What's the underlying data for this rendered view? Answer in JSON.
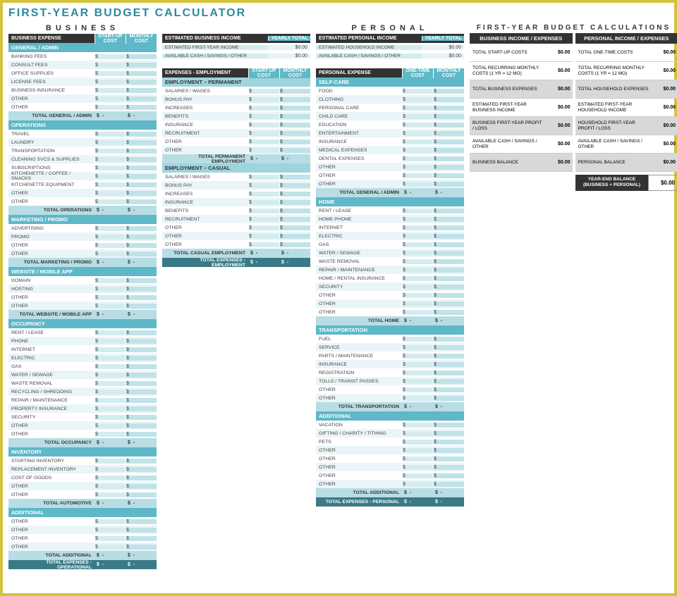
{
  "title": "FIRST-YEAR BUDGET CALCULATOR",
  "sections": {
    "business": "BUSINESS",
    "personal": "PERSONAL",
    "calc": "FIRST-YEAR BUDGET CALCULATIONS"
  },
  "headers": {
    "businessExpense": "BUSINESS EXPENSE",
    "startup": "START-UP COST",
    "monthly": "MONTHLY COST",
    "businessIncome": "ESTIMATED BUSINESS INCOME",
    "yearlyTotal": "YEARLY TOTAL",
    "expensesEmp": "EXPENSES - EMPLOYMENT",
    "personalIncome": "ESTIMATED PERSONAL INCOME",
    "personalExpense": "PERSONAL EXPENSE",
    "oneTime": "ONE-TIME COST",
    "bizIncExp": "BUSINESS INCOME / EXPENSES",
    "persIncExp": "PERSONAL INCOME / EXPENSES"
  },
  "dollar": "$",
  "dash": "-",
  "zero": "$0.00",
  "biz": {
    "generalAdmin": {
      "title": "GENERAL / ADMIN",
      "items": [
        "Banking Fees",
        "Consult Fees",
        "Office Supplies",
        "License Fees",
        "Business Insurance",
        "Other",
        "Other"
      ],
      "total": "TOTAL GENERAL / ADMIN"
    },
    "operations": {
      "title": "OPERATIONS",
      "items": [
        "Travel",
        "Laundry",
        "Transportation",
        "Cleaning Svcs & Supplies",
        "Subscriptions",
        "Kitchenette / Coffee / Snacks",
        "Kitchenette Equipment",
        "Other",
        "Other"
      ],
      "total": "TOTAL OPERATIONS"
    },
    "marketing": {
      "title": "MARKETING / PROMO",
      "items": [
        "Advertising",
        "Promo",
        "Other",
        "Other"
      ],
      "total": "TOTAL MARKETING / PROMO"
    },
    "website": {
      "title": "WEBSITE / MOBILE APP",
      "items": [
        "Domain",
        "Hosting",
        "Other",
        "Other"
      ],
      "total": "TOTAL WEBSITE / MOBILE APP"
    },
    "occupancy": {
      "title": "OCCUPANCY",
      "items": [
        "Rent / Lease",
        "Phone",
        "Internet",
        "Electric",
        "Gas",
        "Water / Sewage",
        "Waste Removal",
        "Recycling / Shredding",
        "Repair / Maintenance",
        "Property Insurance",
        "Security",
        "Other",
        "Other"
      ],
      "total": "TOTAL OCCUPANCY"
    },
    "inventory": {
      "title": "INVENTORY",
      "items": [
        "Starting Inventory",
        "Replacement Inventory",
        "Cost of Goods",
        "Other",
        "Other"
      ],
      "total": "TOTAL AUTOMOTIVE"
    },
    "additional": {
      "title": "ADDITIONAL",
      "items": [
        "Other",
        "Other",
        "Other",
        "Other"
      ],
      "total": "TOTAL ADDITIONAL"
    },
    "grandTotal": "TOTAL EXPENSES - OPERATIONAL"
  },
  "income": {
    "biz": [
      [
        "ESTIMATED FIRST-YEAR INCOME",
        "$0.00"
      ],
      [
        "AVAILABLE CASH / SAVINGS / OTHER",
        "$0.00"
      ]
    ],
    "pers": [
      [
        "ESTIMATED HOUSEHOLD INCOME",
        "$0.00"
      ],
      [
        "AVAILABLE CASH / SAVINGS / OTHER",
        "$0.00"
      ]
    ]
  },
  "emp": {
    "permanent": {
      "title": "EMPLOYMENT – PERMANENT",
      "items": [
        "Salaries / Wages",
        "Bonus Pay",
        "Increases",
        "Benefits",
        "Insurance",
        "Recruitment",
        "Other",
        "Other"
      ],
      "total": "TOTAL PERMANENT EMPLOYMENT"
    },
    "casual": {
      "title": "EMPLOYMENT – CASUAL",
      "items": [
        "Salaries / Wages",
        "Bonus Pay",
        "Increases",
        "Insurance",
        "Benefits",
        "Recruitment",
        "Other",
        "Other",
        "Other"
      ],
      "total": "TOTAL CASUAL EMPLOYMENT"
    },
    "grandTotal": "TOTAL EXPENSES - EMPLOYMENT"
  },
  "pers": {
    "selfcare": {
      "title": "SELF-CARE",
      "items": [
        "Food",
        "Clothing",
        "Personal Care",
        "Child Care",
        "Education",
        "Entertainment",
        "Insurance",
        "Medical Expenses",
        "Dental Expenses",
        "Other",
        "Other",
        "Other"
      ],
      "total": "TOTAL GENERAL / ADMIN"
    },
    "home": {
      "title": "HOME",
      "items": [
        "Rent / Lease",
        "Home Phone",
        "Internet",
        "Electric",
        "Gas",
        "Water / Sewage",
        "Waste Removal",
        "Repair / Maintenance",
        "Home / Rental Insurance",
        "Security",
        "Other",
        "Other",
        "Other"
      ],
      "total": "TOTAL HOME"
    },
    "transport": {
      "title": "TRANSPORTATION",
      "items": [
        "Fuel",
        "Service",
        "Parts / Maintenance",
        "Insurance",
        "Registration",
        "Tolls / Transit Passes",
        "Other",
        "Other"
      ],
      "total": "TOTAL TRANSPORTATION"
    },
    "additional": {
      "title": "ADDITIONAL",
      "items": [
        "Vacation",
        "Gifting / Charity / Tithing",
        "Pets",
        "Other",
        "Other",
        "Other",
        "Other",
        "Other"
      ],
      "total": "TOTAL ADDITIONAL"
    },
    "grandTotal": "TOTAL EXPENSES - PERSONAL"
  },
  "calc": {
    "left": [
      {
        "l": "TOTAL START-UP COSTS",
        "v": "$0.00"
      },
      {
        "l": "TOTAL RECURRING MONTHLY COSTS (1 YR = 12 MO)",
        "v": "$0.00"
      },
      {
        "l": "TOTAL BUSINESS EXPENSES",
        "v": "$0.00",
        "shade": true
      },
      {
        "l": "ESTIMATED FIRST-YEAR BUSINESS INCOME",
        "v": "$0.00"
      },
      {
        "l": "BUSINESS FIRST-YEAR PROFIT / LOSS",
        "v": "$0.00",
        "shade": true
      },
      {
        "l": "AVAILABLE CASH / SAVINGS / OTHER",
        "v": "$0.00"
      },
      {
        "l": "BUSINESS BALANCE",
        "v": "$0.00",
        "shade": true
      }
    ],
    "right": [
      {
        "l": "TOTAL ONE-TIME COSTS",
        "v": "$0.00"
      },
      {
        "l": "TOTAL RECURRING MONTHLY COSTS (1 YR = 12 MO)",
        "v": "$0.00"
      },
      {
        "l": "TOTAL HOUSEHOLD EXPENSES",
        "v": "$0.00",
        "shade": true
      },
      {
        "l": "ESTIMATED FIRST-YEAR HOUSEHOLD INCOME",
        "v": "$0.00"
      },
      {
        "l": "HOUSEHOLD FIRST-YEAR PROFIT / LOSS",
        "v": "$0.00",
        "shade": true
      },
      {
        "l": "AVAILABLE CASH / SAVINGS / OTHER",
        "v": "$0.00"
      },
      {
        "l": "PERSONAL BALANCE",
        "v": "$0.00",
        "shade": true
      }
    ],
    "yearEnd": {
      "l": "YEAR-END BALANCE (BUSINESS + PERSONAL)",
      "v": "$0.00"
    }
  }
}
